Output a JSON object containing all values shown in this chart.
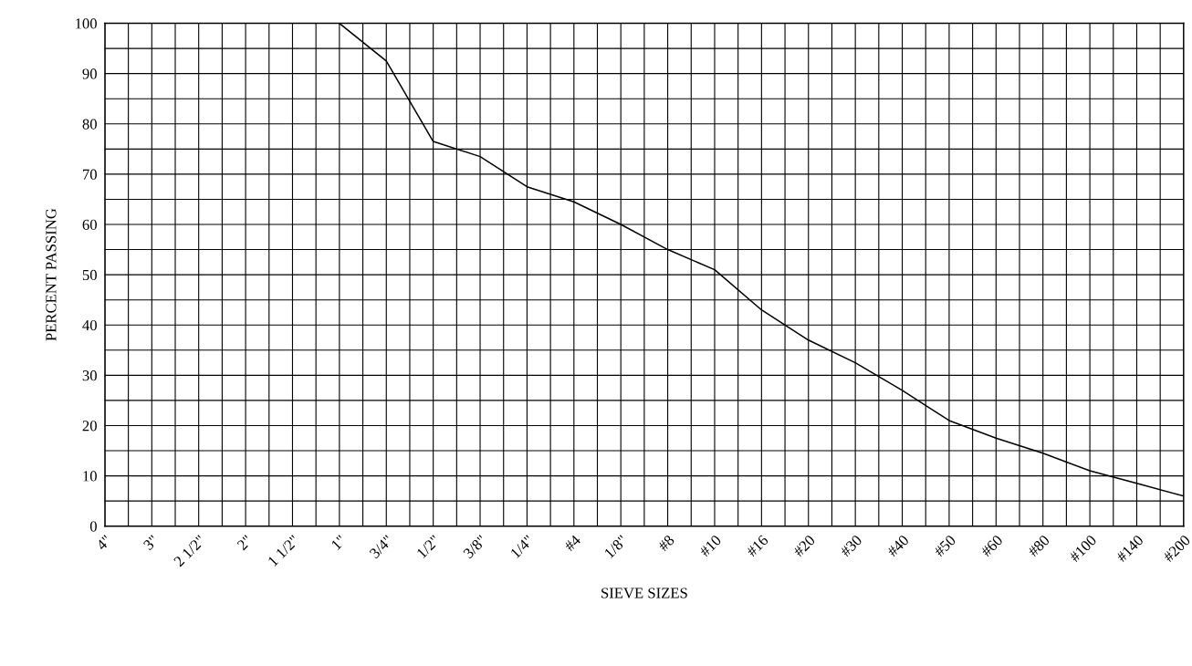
{
  "chart_data": {
    "type": "line",
    "xlabel": "SIEVE SIZES",
    "ylabel": "PERCENT PASSING",
    "categories": [
      "4\"",
      "3\"",
      "2 1/2\"",
      "2\"",
      "1 1/2\"",
      "1\"",
      "3/4\"",
      "1/2\"",
      "3/8\"",
      "1/4\"",
      "#4",
      "1/8\"",
      "#8",
      "#10",
      "#16",
      "#20",
      "#30",
      "#40",
      "#50",
      "#60",
      "#80",
      "#100",
      "#140",
      "#200"
    ],
    "series": [
      {
        "color": "#000000",
        "values": [
          null,
          null,
          null,
          null,
          null,
          100,
          92.5,
          76.5,
          73.5,
          67.5,
          64.5,
          60,
          55,
          51,
          43,
          37,
          32.5,
          27,
          21,
          17.5,
          14.5,
          11,
          8.5,
          6
        ]
      }
    ],
    "ylim": [
      0,
      100
    ],
    "yticks": [
      0,
      {
        "value": 5,
        "label": null
      },
      10,
      {
        "value": 15,
        "label": null
      },
      20,
      {
        "value": 25,
        "label": null
      },
      30,
      {
        "value": 35,
        "label": null
      },
      40,
      {
        "value": 45,
        "label": null
      },
      50,
      {
        "value": 55,
        "label": null
      },
      60,
      {
        "value": 65,
        "label": null
      },
      70,
      {
        "value": 75,
        "label": null
      },
      80,
      {
        "value": 85,
        "label": null
      },
      90,
      {
        "value": 95,
        "label": null
      },
      100
    ],
    "grid": true,
    "marker": "none",
    "line_style": "solid",
    "legend": false
  }
}
